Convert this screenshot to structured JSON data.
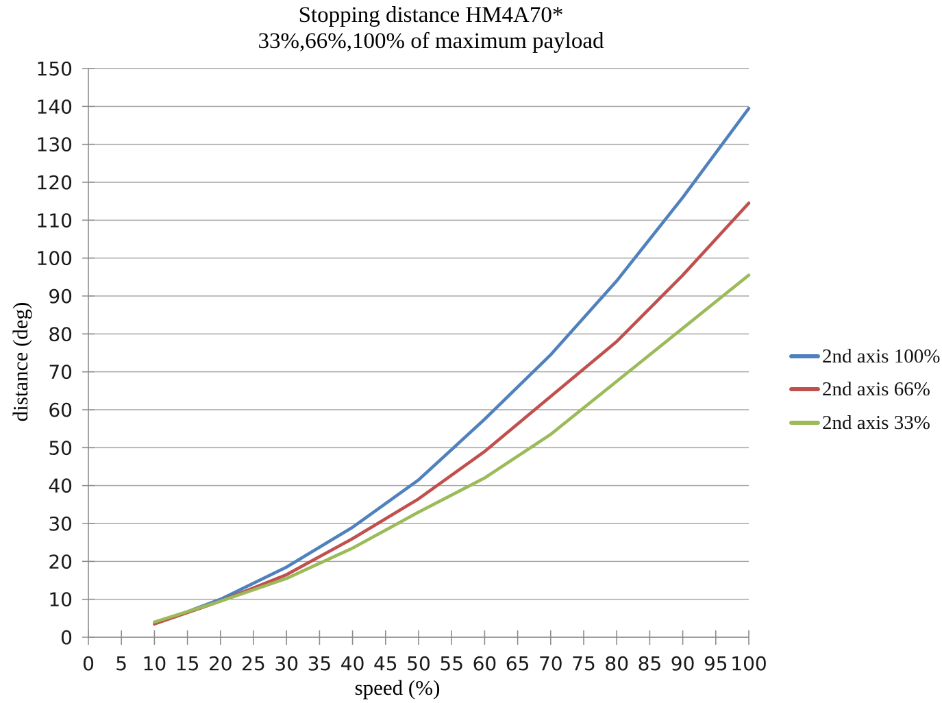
{
  "title": {
    "line1": "Stopping distance HM4A70*",
    "line2": "33%,66%,100% of maximum payload"
  },
  "axes": {
    "x": {
      "title": "speed (%)",
      "min": 0,
      "max": 100,
      "tick_step": 5,
      "tick_labels": [
        "0",
        "5",
        "10",
        "15",
        "20",
        "25",
        "30",
        "35",
        "40",
        "45",
        "50",
        "55",
        "60",
        "65",
        "70",
        "75",
        "80",
        "85",
        "90",
        "95",
        "100"
      ]
    },
    "y": {
      "title": "distance (deg)",
      "min": 0,
      "max": 150,
      "tick_step": 10,
      "tick_labels": [
        "0",
        "10",
        "20",
        "30",
        "40",
        "50",
        "60",
        "70",
        "80",
        "90",
        "100",
        "110",
        "120",
        "130",
        "140",
        "150"
      ]
    }
  },
  "legend": {
    "items": [
      {
        "label": "2nd axis 100%",
        "color": "#4F81BD"
      },
      {
        "label": "2nd axis 66%",
        "color": "#C0504D"
      },
      {
        "label": "2nd axis 33%",
        "color": "#9BBB59"
      }
    ]
  },
  "colors": {
    "gridline": "#A6A6A6",
    "axis_line": "#8C8C8C",
    "tick_text": "#1a1a1a",
    "series_blue": "#4F81BD",
    "series_red": "#C0504D",
    "series_green": "#9BBB59"
  },
  "chart_data": {
    "type": "line",
    "title": "Stopping distance HM4A70*",
    "subtitle": "33%,66%,100% of maximum payload",
    "xlabel": "speed (%)",
    "ylabel": "distance (deg)",
    "xlim": [
      0,
      100
    ],
    "ylim": [
      0,
      150
    ],
    "grid": "horizontal",
    "legend_position": "right",
    "x": [
      10,
      20,
      30,
      40,
      50,
      60,
      70,
      80,
      90,
      100
    ],
    "series": [
      {
        "name": "2nd axis 100%",
        "color": "#4F81BD",
        "values": [
          3.5,
          10,
          18.5,
          29,
          41.5,
          57.5,
          74.5,
          94,
          116,
          139.5
        ]
      },
      {
        "name": "2nd axis 66%",
        "color": "#C0504D",
        "values": [
          3.5,
          9.5,
          16.5,
          26,
          36.5,
          49,
          63.5,
          78,
          95.5,
          114.5
        ]
      },
      {
        "name": "2nd axis 33%",
        "color": "#9BBB59",
        "values": [
          4,
          9.5,
          15.5,
          23.5,
          33,
          42,
          53.5,
          67.5,
          81.5,
          95.5
        ]
      }
    ]
  }
}
